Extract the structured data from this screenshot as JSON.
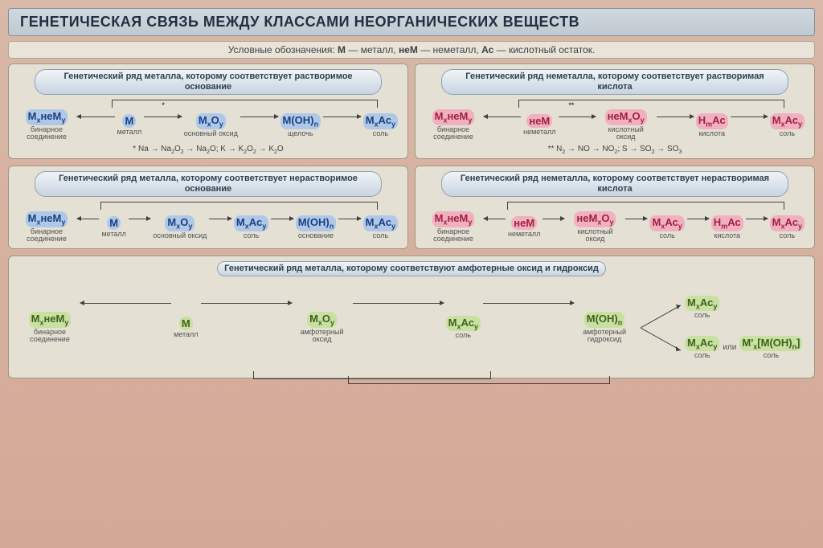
{
  "title": "ГЕНЕТИЧЕСКАЯ СВЯЗЬ МЕЖДУ КЛАССАМИ НЕОРГАНИЧЕСКИХ ВЕЩЕСТВ",
  "legend": {
    "prefix": "Условные обозначения:",
    "m": "М",
    "m_desc": "— металл,",
    "nem": "неМ",
    "nem_desc": "— неметалл,",
    "ac": "Ас",
    "ac_desc": "— кислотный остаток."
  },
  "panels": {
    "p1": {
      "title": "Генетический ряд металла, которому соответствует растворимое основание",
      "nodes": [
        {
          "f": "M<sub>x</sub>неМ<sub>y</sub>",
          "hl": "hl-blue",
          "lbl": "бинарное соединение"
        },
        {
          "f": "M",
          "hl": "hl-blue",
          "lbl": "металл"
        },
        {
          "f": "M<sub>x</sub>O<sub>y</sub>",
          "hl": "hl-blue",
          "lbl": "основный оксид"
        },
        {
          "f": "M(OH)<sub>n</sub>",
          "hl": "hl-blue",
          "lbl": "щелочь"
        },
        {
          "f": "M<sub>x</sub>Ас<sub>y</sub>",
          "hl": "hl-blue",
          "lbl": "соль"
        }
      ],
      "dirs": [
        "rev",
        "",
        "",
        "",
        ""
      ],
      "star": "*",
      "example": "* Na → Na<sub>2</sub>O<sub>2</sub> → Na<sub>2</sub>O;  K → K<sub>2</sub>O<sub>2</sub> → K<sub>2</sub>O"
    },
    "p2": {
      "title": "Генетический ряд неметалла, которому соответствует растворимая кислота",
      "nodes": [
        {
          "f": "M<sub>x</sub>неМ<sub>y</sub>",
          "hl": "hl-pink",
          "lbl": "бинарное соединение"
        },
        {
          "f": "неМ",
          "hl": "hl-pink",
          "lbl": "неметалл"
        },
        {
          "f": "неМ<sub>x</sub>O<sub>y</sub>",
          "hl": "hl-pink",
          "lbl": "кислотный оксид"
        },
        {
          "f": "H<sub>m</sub>Ас",
          "hl": "hl-pink",
          "lbl": "кислота"
        },
        {
          "f": "M<sub>x</sub>Ас<sub>y</sub>",
          "hl": "hl-pink",
          "lbl": "соль"
        }
      ],
      "dirs": [
        "rev",
        "",
        "",
        "",
        ""
      ],
      "star": "**",
      "example": "** N<sub>2</sub> → NO → NO<sub>2</sub>;  S → SO<sub>2</sub> → SO<sub>3</sub>"
    },
    "p3": {
      "title": "Генетический ряд металла, которому соответствует нерастворимое основание",
      "nodes": [
        {
          "f": "M<sub>x</sub>неМ<sub>y</sub>",
          "hl": "hl-blue",
          "lbl": "бинарное соединение"
        },
        {
          "f": "M",
          "hl": "hl-blue",
          "lbl": "металл"
        },
        {
          "f": "M<sub>x</sub>O<sub>y</sub>",
          "hl": "hl-blue",
          "lbl": "основный оксид"
        },
        {
          "f": "M<sub>x</sub>Ас<sub>y</sub>",
          "hl": "hl-blue",
          "lbl": "соль"
        },
        {
          "f": "M(OH)<sub>n</sub>",
          "hl": "hl-blue",
          "lbl": "основание"
        },
        {
          "f": "M<sub>x</sub>Ас<sub>y</sub>",
          "hl": "hl-blue",
          "lbl": "соль"
        }
      ],
      "dirs": [
        "rev",
        "",
        "",
        "",
        "",
        ""
      ]
    },
    "p4": {
      "title": "Генетический ряд неметалла, которому соответствует нерастворимая кислота",
      "nodes": [
        {
          "f": "M<sub>x</sub>неМ<sub>y</sub>",
          "hl": "hl-pink",
          "lbl": "бинарное соединение"
        },
        {
          "f": "неМ",
          "hl": "hl-pink",
          "lbl": "неметалл"
        },
        {
          "f": "неМ<sub>x</sub>O<sub>y</sub>",
          "hl": "hl-pink",
          "lbl": "кислотный оксид"
        },
        {
          "f": "M<sub>x</sub>Ас<sub>y</sub>",
          "hl": "hl-pink",
          "lbl": "соль"
        },
        {
          "f": "H<sub>m</sub>Ас",
          "hl": "hl-pink",
          "lbl": "кислота"
        },
        {
          "f": "M<sub>x</sub>Ас<sub>y</sub>",
          "hl": "hl-pink",
          "lbl": "соль"
        }
      ],
      "dirs": [
        "rev",
        "",
        "",
        "",
        "",
        ""
      ]
    },
    "p5": {
      "title": "Генетический ряд металла, которому соответствуют амфотерные оксид и гидроксид",
      "nodes": [
        {
          "f": "M<sub>x</sub>неМ<sub>y</sub>",
          "hl": "hl-green",
          "lbl": "бинарное соединение"
        },
        {
          "f": "M",
          "hl": "hl-green",
          "lbl": "металл"
        },
        {
          "f": "M<sub>x</sub>O<sub>y</sub>",
          "hl": "hl-green",
          "lbl": "амфотерный оксид"
        },
        {
          "f": "M<sub>x</sub>Ас<sub>y</sub>",
          "hl": "hl-green",
          "lbl": "соль"
        },
        {
          "f": "M(OH)<sub>n</sub>",
          "hl": "hl-green",
          "lbl": "амфотерный гидроксид"
        }
      ],
      "dirs": [
        "rev",
        "",
        "",
        "",
        ""
      ],
      "branch_top": {
        "f": "M<sub>x</sub>Ас<sub>y</sub>",
        "hl": "hl-green",
        "lbl": "соль"
      },
      "branch_bot": {
        "f": "M<sub>x</sub>Ас<sub>y</sub>",
        "hl": "hl-green",
        "lbl": "соль"
      },
      "or": "или",
      "alt": {
        "f": "M'<sub>x</sub>[M(OH)<sub>n</sub>]",
        "hl": "hl-green",
        "lbl": "соль"
      }
    }
  },
  "colors": {
    "bg_salmon": "#d9b8a8",
    "panel_bg": "#e4e0d4",
    "title_grad_top": "#d0d8e0",
    "title_grad_bot": "#c0c8d0",
    "hl_blue": "#b0c8e8",
    "hl_pink": "#f0b0c0",
    "hl_green": "#c8e0a0",
    "arrow": "#404040"
  }
}
